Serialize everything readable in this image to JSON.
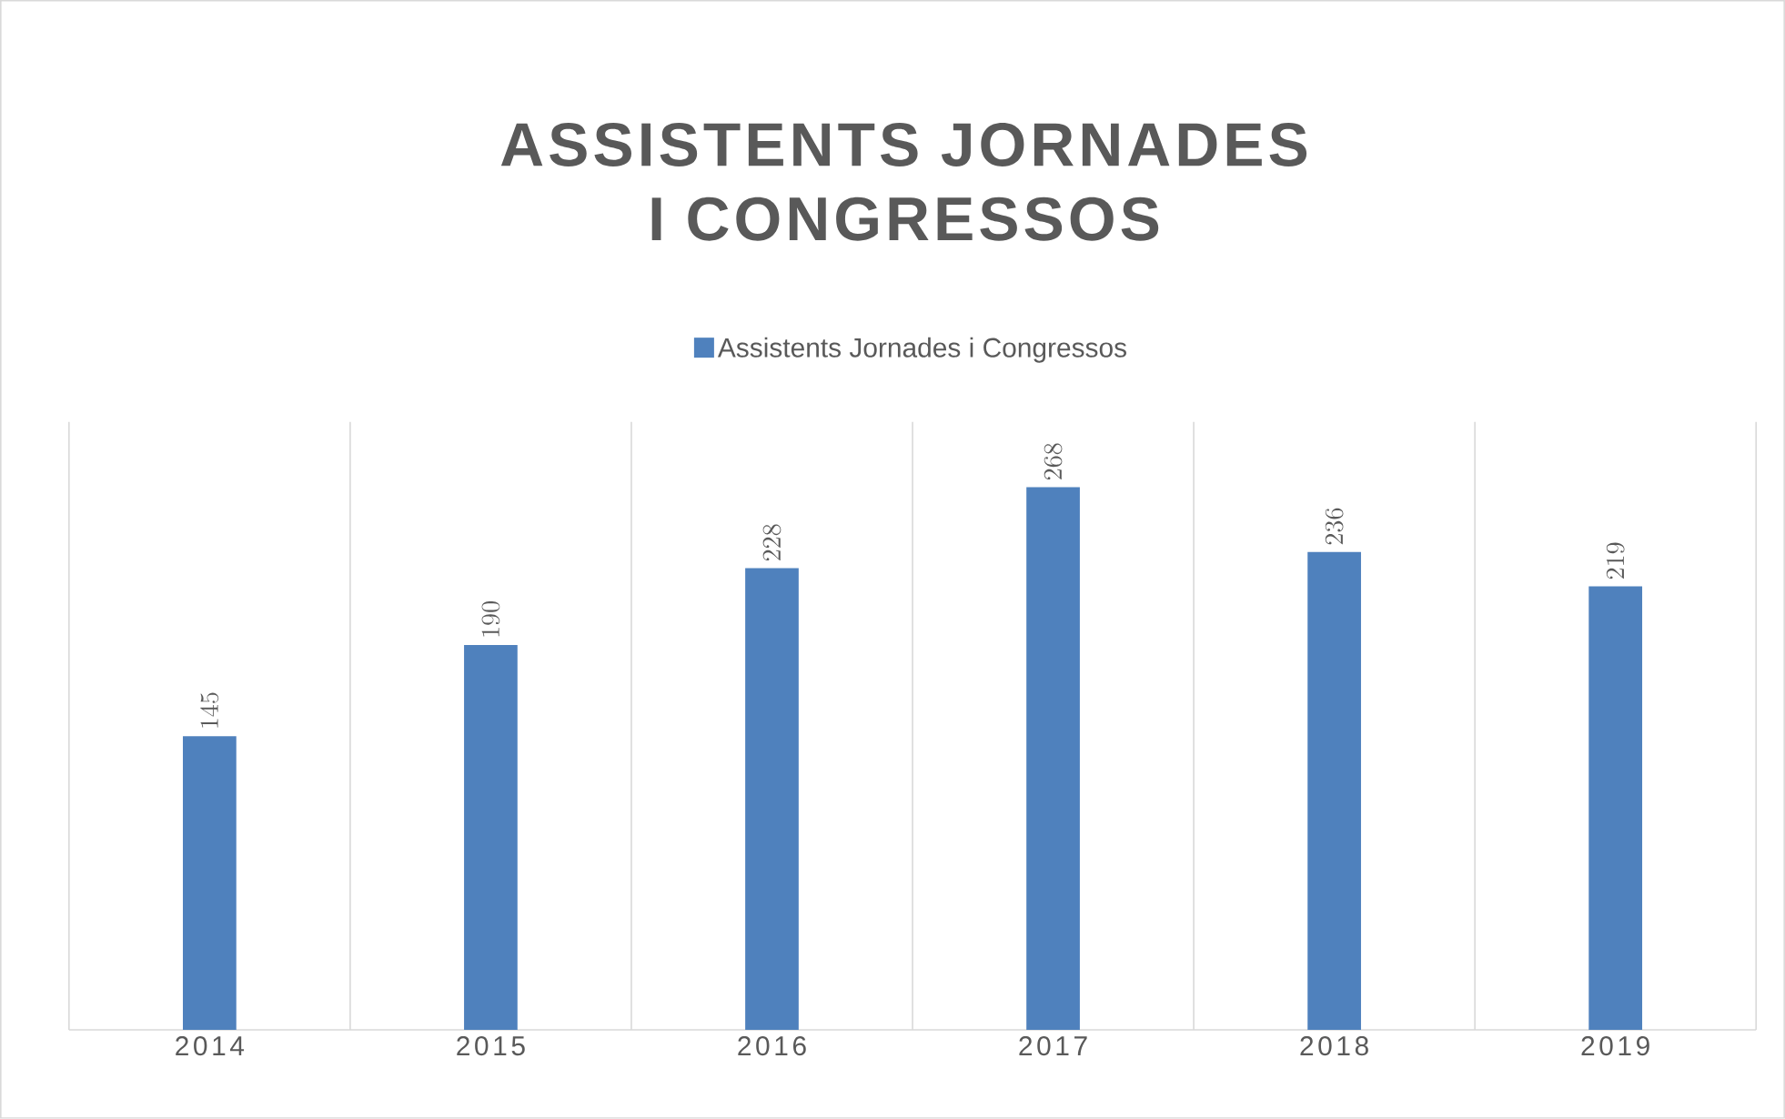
{
  "chart_data": {
    "type": "bar",
    "title": "ASSISTENTS JORNADES I CONGRESSOS",
    "categories": [
      "2014",
      "2015",
      "2016",
      "2017",
      "2018",
      "2019"
    ],
    "series": [
      {
        "name": "Assistents Jornades i Congressos",
        "color": "#4f81bd",
        "values": [
          145,
          190,
          228,
          268,
          236,
          219
        ]
      }
    ],
    "data_labels": true,
    "grid": "x",
    "legend": "top"
  }
}
